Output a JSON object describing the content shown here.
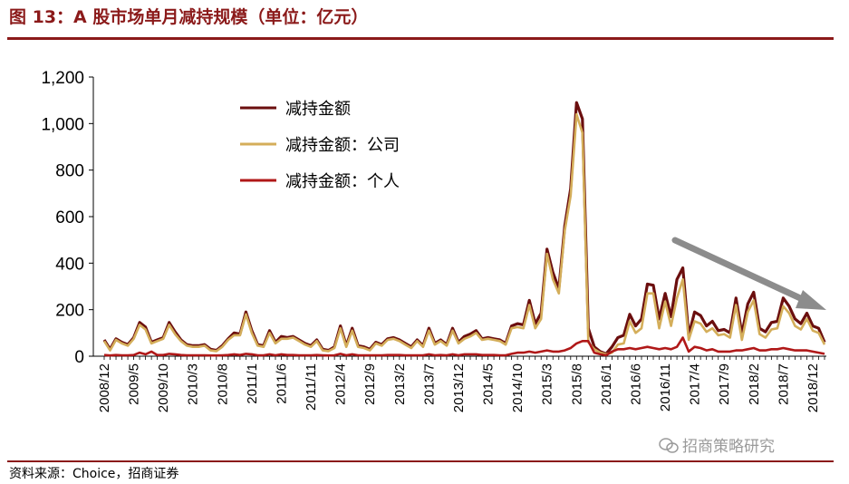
{
  "figure": {
    "title": "图 13：A 股市场单月减持规模（单位：亿元）",
    "source": "资料来源：Choice，招商证券",
    "watermark": "招商策略研究"
  },
  "colors": {
    "total": "#6B0E0E",
    "company": "#D4AE5A",
    "individual": "#B01818",
    "trend_arrow": "#8c8c8c",
    "rule": "#8B1A1A"
  },
  "chart_data": {
    "type": "line",
    "title": "",
    "xlabel": "",
    "ylabel": "",
    "ylim": [
      0,
      1200
    ],
    "yticks": [
      "0",
      "200",
      "400",
      "600",
      "800",
      "1,000",
      "1,200"
    ],
    "ytick_values": [
      0,
      200,
      400,
      600,
      800,
      1000,
      1200
    ],
    "xtick_labels": [
      "2008/12",
      "2009/5",
      "2009/10",
      "2010/3",
      "2010/8",
      "2011/1",
      "2011/6",
      "2011/11",
      "2012/4",
      "2012/9",
      "2013/2",
      "2013/7",
      "2013/12",
      "2014/5",
      "2014/10",
      "2015/3",
      "2015/8",
      "2016/1",
      "2016/6",
      "2016/11",
      "2017/4",
      "2017/9",
      "2018/2",
      "2018/7",
      "2018/12"
    ],
    "legend_position": "top-left",
    "grid": false,
    "annotation": "downward trend arrow over 2016–2018",
    "series": [
      {
        "name": "减持金额",
        "key": "total",
        "values": [
          70,
          30,
          75,
          60,
          50,
          80,
          145,
          125,
          60,
          70,
          80,
          145,
          105,
          70,
          50,
          45,
          45,
          50,
          30,
          25,
          45,
          75,
          100,
          95,
          190,
          110,
          50,
          45,
          110,
          60,
          85,
          80,
          85,
          70,
          55,
          45,
          70,
          30,
          25,
          40,
          130,
          45,
          120,
          45,
          40,
          30,
          60,
          50,
          75,
          80,
          70,
          55,
          40,
          70,
          45,
          120,
          55,
          70,
          50,
          120,
          60,
          85,
          95,
          110,
          75,
          80,
          75,
          70,
          55,
          130,
          140,
          135,
          240,
          140,
          185,
          460,
          360,
          290,
          560,
          720,
          1090,
          1020,
          120,
          40,
          20,
          10,
          40,
          80,
          90,
          180,
          130,
          160,
          310,
          305,
          160,
          270,
          170,
          330,
          380,
          90,
          190,
          175,
          130,
          150,
          110,
          115,
          100,
          250,
          95,
          225,
          275,
          120,
          105,
          145,
          150,
          250,
          215,
          160,
          140,
          185,
          130,
          120,
          60
        ]
      },
      {
        "name": "减持金额：公司",
        "key": "company",
        "values": [
          65,
          25,
          70,
          55,
          45,
          75,
          135,
          115,
          55,
          65,
          75,
          135,
          95,
          65,
          45,
          40,
          40,
          45,
          25,
          22,
          40,
          70,
          90,
          90,
          180,
          100,
          45,
          40,
          100,
          55,
          75,
          75,
          80,
          65,
          50,
          40,
          65,
          25,
          22,
          35,
          120,
          40,
          110,
          40,
          35,
          25,
          55,
          45,
          70,
          75,
          65,
          50,
          35,
          65,
          40,
          110,
          50,
          65,
          45,
          110,
          55,
          75,
          85,
          100,
          70,
          75,
          70,
          65,
          50,
          120,
          125,
          120,
          220,
          120,
          160,
          440,
          330,
          270,
          540,
          690,
          1040,
          960,
          60,
          30,
          15,
          8,
          15,
          50,
          55,
          150,
          100,
          120,
          270,
          270,
          120,
          235,
          130,
          250,
          330,
          70,
          150,
          140,
          105,
          120,
          90,
          95,
          80,
          220,
          70,
          190,
          240,
          95,
          80,
          115,
          120,
          215,
          185,
          130,
          115,
          160,
          110,
          100,
          50
        ]
      },
      {
        "name": "减持金额：个人",
        "key": "individual",
        "values": [
          5,
          3,
          5,
          4,
          4,
          5,
          15,
          8,
          20,
          5,
          5,
          10,
          8,
          5,
          4,
          4,
          4,
          4,
          3,
          3,
          4,
          5,
          8,
          5,
          10,
          8,
          4,
          4,
          8,
          4,
          8,
          5,
          5,
          4,
          4,
          4,
          5,
          4,
          3,
          4,
          10,
          4,
          8,
          4,
          4,
          4,
          4,
          4,
          5,
          5,
          5,
          4,
          4,
          4,
          4,
          8,
          4,
          5,
          4,
          8,
          4,
          8,
          8,
          8,
          5,
          5,
          5,
          4,
          4,
          10,
          15,
          15,
          20,
          15,
          20,
          25,
          20,
          20,
          25,
          35,
          55,
          65,
          65,
          15,
          8,
          4,
          20,
          30,
          30,
          35,
          30,
          35,
          40,
          35,
          30,
          35,
          30,
          40,
          80,
          20,
          40,
          35,
          25,
          30,
          20,
          20,
          20,
          25,
          25,
          30,
          35,
          25,
          25,
          30,
          30,
          35,
          30,
          25,
          25,
          25,
          20,
          15,
          10
        ]
      }
    ]
  }
}
